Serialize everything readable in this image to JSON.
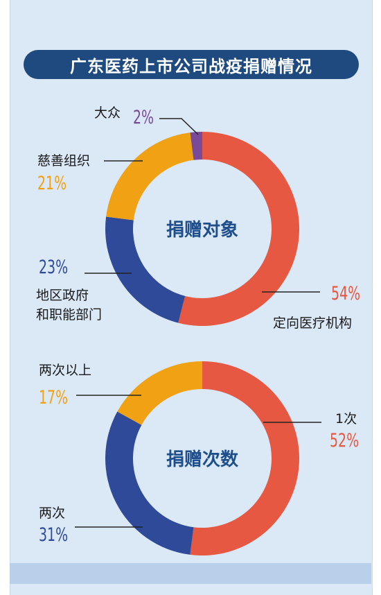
{
  "title": "广东医药上市公司战疫捐赠情况",
  "colors": {
    "red": "#e65841",
    "orange": "#f0a114",
    "blue": "#2f4a98",
    "purple": "#7a4a98",
    "title_bg": "#1f4a80",
    "center_text": "#1f4e8c"
  },
  "chart_data": [
    {
      "type": "pie",
      "title": "捐赠对象",
      "slices": [
        {
          "name": "定向医疗机构",
          "value": 54,
          "label": "54%",
          "color": "#e65841"
        },
        {
          "name": "地区政府\n和职能部门",
          "value": 23,
          "label": "23%",
          "color": "#2f4a98"
        },
        {
          "name": "慈善组织",
          "value": 21,
          "label": "21%",
          "color": "#f0a114"
        },
        {
          "name": "大众",
          "value": 2,
          "label": "2%",
          "color": "#7a4a98"
        }
      ]
    },
    {
      "type": "pie",
      "title": "捐赠次数",
      "slices": [
        {
          "name": "1次",
          "value": 52,
          "label": "52%",
          "color": "#e65841"
        },
        {
          "name": "两次",
          "value": 31,
          "label": "31%",
          "color": "#2f4a98"
        },
        {
          "name": "两次以上",
          "value": 17,
          "label": "17%",
          "color": "#f0a114"
        }
      ]
    }
  ]
}
